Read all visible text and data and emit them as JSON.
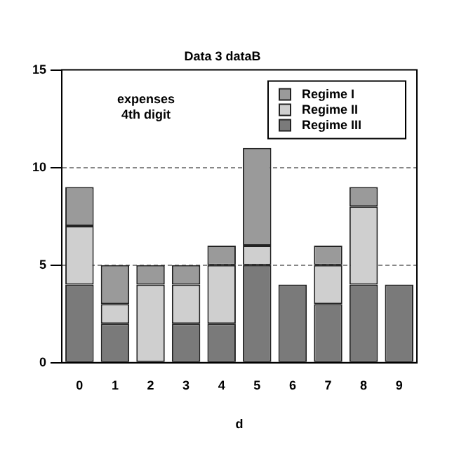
{
  "chart_data": {
    "type": "bar",
    "title": "Data 3 dataB",
    "xlabel": "d",
    "categories": [
      "0",
      "1",
      "2",
      "3",
      "4",
      "5",
      "6",
      "7",
      "8",
      "9"
    ],
    "stacked": true,
    "series": [
      {
        "name": "Regime III",
        "color": "#7a7a7a",
        "values": [
          4,
          2,
          0,
          2,
          2,
          5,
          4,
          3,
          4,
          4
        ]
      },
      {
        "name": "Regime II",
        "color": "#cfcfcf",
        "values": [
          3,
          1,
          4,
          2,
          3,
          1,
          0,
          2,
          4,
          0
        ]
      },
      {
        "name": "Regime I",
        "color": "#9a9a9a",
        "values": [
          2,
          2,
          1,
          1,
          1,
          5,
          0,
          1,
          1,
          0
        ]
      }
    ],
    "ylim": [
      0,
      15
    ],
    "yticks": [
      0,
      5,
      10,
      15
    ],
    "grid": "y",
    "legend": "top right",
    "annotations": [
      "expenses",
      "4th digit"
    ]
  }
}
